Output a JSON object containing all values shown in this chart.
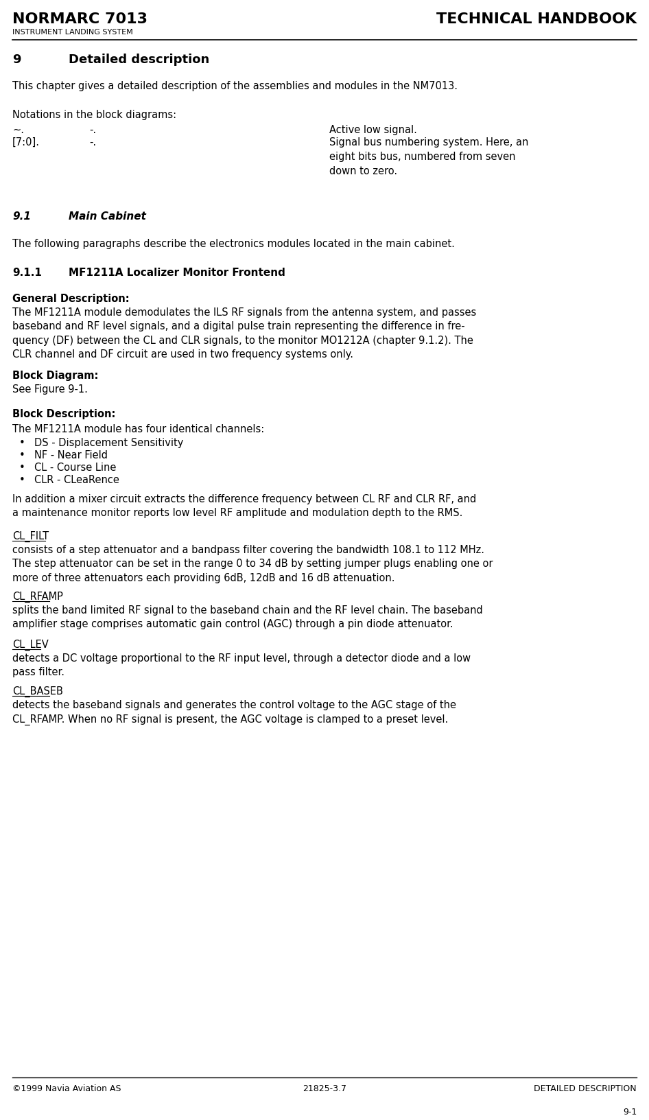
{
  "bg_color": "#ffffff",
  "text_color": "#000000",
  "header_left": "NORMARC 7013",
  "header_right": "TECHNICAL HANDBOOK",
  "header_sub": "INSTRUMENT LANDING SYSTEM",
  "footer_left": "©1999 Navia Aviation AS",
  "footer_center": "21825-3.7",
  "footer_right": "DETAILED DESCRIPTION",
  "footer_page": "9-1",
  "chapter_num": "9",
  "chapter_title": "Detailed description",
  "intro_text": "This chapter gives a detailed description of the assemblies and modules in the NM7013.",
  "notations_header": "Notations in the block diagrams:",
  "notation_rows": [
    {
      "col1": "~.",
      "col2": "-.",
      "col3": "Active low signal."
    },
    {
      "col1": "[7:0].",
      "col2": "-.",
      "col3": "Signal bus numbering system. Here, an eight bits bus, numbered from seven down to zero."
    }
  ],
  "section_91_num": "9.1",
  "section_91_title": "Main Cabinet",
  "section_91_text": "The following paragraphs describe the electronics modules located in the main cabinet.",
  "section_911_num": "9.1.1",
  "section_911_title": "MF1211A Localizer Monitor Frontend",
  "general_desc_header": "General Description:",
  "general_desc_text": "The MF1211A module demodulates the ILS RF signals from the antenna system, and passes baseband and RF level signals, and a digital pulse train representing the difference in fre-quency (DF) between the CL and CLR signals, to the monitor MO1212A (chapter 9.1.2). The CLR channel and DF circuit are used in two frequency systems only.",
  "block_diag_header": "Block Diagram:",
  "block_diag_text": "See Figure 9-1.",
  "block_desc_header": "Block Description:",
  "block_desc_intro": "The MF1211A module has four identical channels:",
  "bullet_items": [
    "DS - Displacement Sensitivity",
    "NF - Near Field",
    "CL - Course Line",
    "CLR - CLeaRence"
  ],
  "addition_text": "In addition a mixer circuit extracts the difference frequency between CL RF and CLR RF, and a maintenance monitor reports low level RF amplitude and modulation depth to the RMS.",
  "subsections": [
    {
      "title": "CL_FILT",
      "underline": true,
      "text": "consists of a step attenuator and a bandpass filter covering the bandwidth 108.1 to 112 MHz. The step attenuator can be set in the range 0 to 34 dB by setting jumper plugs enabling one or more of three attenuators each providing 6dB, 12dB and 16 dB attenuation."
    },
    {
      "title": "CL_RFAMP",
      "underline": true,
      "text": "splits the band limited RF signal to the baseband chain and the RF level chain. The baseband amplifier stage comprises automatic gain control (AGC) through a pin diode attenuator."
    },
    {
      "title": "CL_LEV",
      "underline": true,
      "text": "detects a DC voltage proportional to the RF input level, through a detector diode and a low pass filter."
    },
    {
      "title": "CL_BASEB",
      "underline": true,
      "text": "detects the baseband signals and generates the control voltage to the AGC stage of the CL_RFAMP. When no RF signal is present, the AGC voltage is clamped to a preset level."
    }
  ]
}
